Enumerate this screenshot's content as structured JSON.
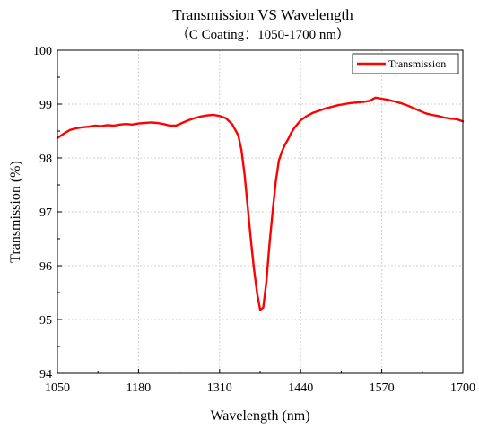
{
  "chart_data": {
    "type": "line",
    "title": "Transmission VS Wavelength",
    "subtitle": "（C Coating：1050-1700 nm）",
    "xlabel": "Wavelength (nm)",
    "ylabel": "Transmission (%)",
    "xlim": [
      1050,
      1700
    ],
    "ylim": [
      94,
      100
    ],
    "xticks": [
      "1050",
      "1180",
      "1310",
      "1440",
      "1570",
      "1700"
    ],
    "yticks": [
      "94",
      "95",
      "96",
      "97",
      "98",
      "99",
      "100"
    ],
    "grid": true,
    "legend_position": "top-right",
    "series": [
      {
        "name": "Transmission",
        "color": "#ff0000",
        "x": [
          1050,
          1060,
          1070,
          1080,
          1090,
          1100,
          1110,
          1120,
          1130,
          1140,
          1150,
          1160,
          1170,
          1180,
          1190,
          1200,
          1210,
          1220,
          1230,
          1240,
          1250,
          1260,
          1270,
          1280,
          1290,
          1300,
          1310,
          1320,
          1330,
          1340,
          1345,
          1350,
          1355,
          1360,
          1365,
          1370,
          1375,
          1380,
          1385,
          1390,
          1395,
          1400,
          1405,
          1410,
          1415,
          1420,
          1425,
          1430,
          1440,
          1450,
          1460,
          1470,
          1480,
          1490,
          1500,
          1510,
          1520,
          1530,
          1540,
          1550,
          1560,
          1570,
          1580,
          1590,
          1600,
          1610,
          1620,
          1630,
          1640,
          1650,
          1660,
          1670,
          1680,
          1690,
          1700
        ],
        "values": [
          98.37,
          98.45,
          98.52,
          98.55,
          98.57,
          98.58,
          98.6,
          98.59,
          98.61,
          98.6,
          98.62,
          98.63,
          98.62,
          98.64,
          98.65,
          98.66,
          98.65,
          98.63,
          98.6,
          98.6,
          98.65,
          98.7,
          98.74,
          98.77,
          98.79,
          98.8,
          98.78,
          98.74,
          98.63,
          98.42,
          98.15,
          97.7,
          97.1,
          96.5,
          95.95,
          95.5,
          95.18,
          95.22,
          95.7,
          96.4,
          97.0,
          97.55,
          97.95,
          98.12,
          98.25,
          98.35,
          98.47,
          98.56,
          98.7,
          98.78,
          98.84,
          98.88,
          98.92,
          98.95,
          98.98,
          99.0,
          99.02,
          99.03,
          99.04,
          99.06,
          99.12,
          99.1,
          99.08,
          99.05,
          99.02,
          98.98,
          98.93,
          98.88,
          98.83,
          98.8,
          98.78,
          98.75,
          98.73,
          98.72,
          98.68
        ]
      }
    ]
  }
}
